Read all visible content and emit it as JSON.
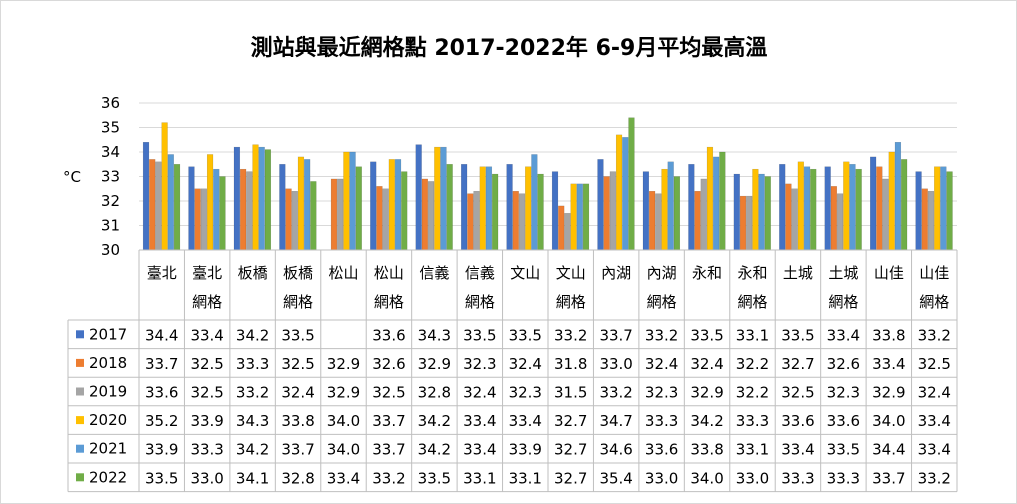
{
  "chart_data": {
    "type": "bar",
    "title": "測站與最近網格點 2017-2022年 6-9月平均最高溫",
    "ylabel": "°C",
    "ylim": [
      30,
      36
    ],
    "yticks": [
      30,
      31,
      32,
      33,
      34,
      35,
      36
    ],
    "grid": true,
    "legend": "data-table",
    "categories": [
      [
        "臺北"
      ],
      [
        "臺北",
        "網格"
      ],
      [
        "板橋"
      ],
      [
        "板橋",
        "網格"
      ],
      [
        "松山"
      ],
      [
        "松山",
        "網格"
      ],
      [
        "信義"
      ],
      [
        "信義",
        "網格"
      ],
      [
        "文山"
      ],
      [
        "文山",
        "網格"
      ],
      [
        "內湖"
      ],
      [
        "內湖",
        "網格"
      ],
      [
        "永和"
      ],
      [
        "永和",
        "網格"
      ],
      [
        "土城"
      ],
      [
        "土城",
        "網格"
      ],
      [
        "山佳"
      ],
      [
        "山佳",
        "網格"
      ]
    ],
    "series": [
      {
        "name": "2017",
        "color": "#4472C4",
        "values": [
          34.4,
          33.4,
          34.2,
          33.5,
          null,
          33.6,
          34.3,
          33.5,
          33.5,
          33.2,
          33.7,
          33.2,
          33.5,
          33.1,
          33.5,
          33.4,
          33.8,
          33.2
        ]
      },
      {
        "name": "2018",
        "color": "#ED7D31",
        "values": [
          33.7,
          32.5,
          33.3,
          32.5,
          32.9,
          32.6,
          32.9,
          32.3,
          32.4,
          31.8,
          33.0,
          32.4,
          32.4,
          32.2,
          32.7,
          32.6,
          33.4,
          32.5
        ]
      },
      {
        "name": "2019",
        "color": "#A5A5A5",
        "values": [
          33.6,
          32.5,
          33.2,
          32.4,
          32.9,
          32.5,
          32.8,
          32.4,
          32.3,
          31.5,
          33.2,
          32.3,
          32.9,
          32.2,
          32.5,
          32.3,
          32.9,
          32.4
        ]
      },
      {
        "name": "2020",
        "color": "#FFC000",
        "values": [
          35.2,
          33.9,
          34.3,
          33.8,
          34.0,
          33.7,
          34.2,
          33.4,
          33.4,
          32.7,
          34.7,
          33.3,
          34.2,
          33.3,
          33.6,
          33.6,
          34.0,
          33.4
        ]
      },
      {
        "name": "2021",
        "color": "#5B9BD5",
        "values": [
          33.9,
          33.3,
          34.2,
          33.7,
          34.0,
          33.7,
          34.2,
          33.4,
          33.9,
          32.7,
          34.6,
          33.6,
          33.8,
          33.1,
          33.4,
          33.5,
          34.4,
          33.4
        ]
      },
      {
        "name": "2022",
        "color": "#70AD47",
        "values": [
          33.5,
          33.0,
          34.1,
          32.8,
          33.4,
          33.2,
          33.5,
          33.1,
          33.1,
          32.7,
          35.4,
          33.0,
          34.0,
          33.0,
          33.3,
          33.3,
          33.7,
          33.2
        ]
      }
    ]
  }
}
